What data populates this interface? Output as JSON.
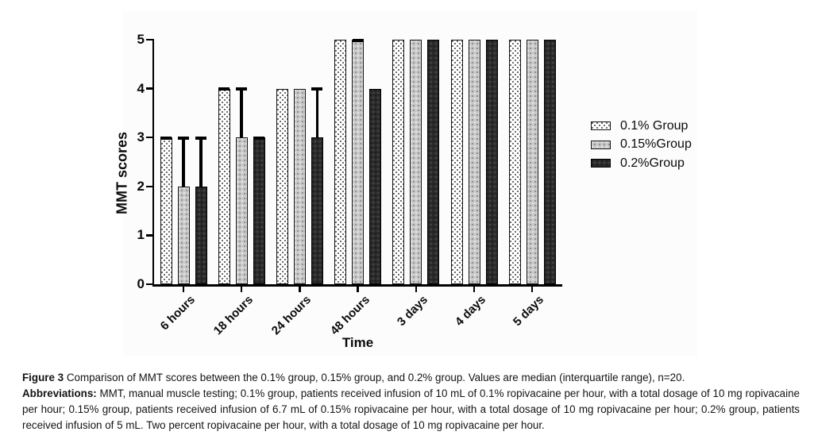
{
  "chart_data": {
    "type": "bar",
    "title": "",
    "xlabel": "Time",
    "ylabel": "MMT scores",
    "ylim": [
      0,
      5
    ],
    "yticks": [
      0,
      1,
      2,
      3,
      4,
      5
    ],
    "categories": [
      "6 hours",
      "18 hours",
      "24 hours",
      "48 hours",
      "3 days",
      "4 days",
      "5 days"
    ],
    "series": [
      {
        "name": "0.1% Group",
        "pattern": "white-dotted",
        "fill": "#ffffff",
        "values": [
          3,
          4,
          4,
          5,
          5,
          5,
          5
        ],
        "upper_whisker": [
          3,
          4,
          4,
          5,
          5,
          5,
          5
        ],
        "caps": [
          true,
          true,
          false,
          false,
          false,
          false,
          false
        ]
      },
      {
        "name": "0.15%Group",
        "pattern": "gray-dotted",
        "fill": "#c9c9c9",
        "values": [
          2,
          3,
          4,
          5,
          5,
          5,
          5
        ],
        "upper_whisker": [
          3,
          4,
          4,
          5,
          5,
          5,
          5
        ],
        "caps": [
          true,
          true,
          false,
          true,
          false,
          false,
          false
        ]
      },
      {
        "name": "0.2%Group",
        "pattern": "dark-dotted",
        "fill": "#2b2b2b",
        "values": [
          2,
          3,
          3,
          4,
          5,
          5,
          5
        ],
        "upper_whisker": [
          3,
          3,
          4,
          4,
          5,
          5,
          5
        ],
        "caps": [
          true,
          true,
          true,
          false,
          false,
          false,
          false
        ]
      }
    ],
    "legend_position": "right",
    "grid": false,
    "error_bars": "upper interquartile range",
    "axis_color": "#000000"
  },
  "caption": {
    "figure_label": "Figure 3",
    "figure_text": "Comparison of MMT scores between the 0.1% group, 0.15% group, and 0.2% group. Values are median (interquartile range), n=20.",
    "abbreviations_label": "Abbreviations:",
    "abbreviations_text": "MMT, manual muscle testing; 0.1% group, patients received infusion of 10 mL of 0.1% ropivacaine per hour, with a total dosage of 10 mg ropivacaine per hour; 0.15% group, patients received infusion of 6.7 mL of 0.15% ropivacaine per hour, with a total dosage of 10 mg ropivacaine per hour; 0.2% group, patients received infusion of 5 mL. Two percent ropivacaine per hour, with a total dosage of 10 mg ropivacaine per hour."
  }
}
